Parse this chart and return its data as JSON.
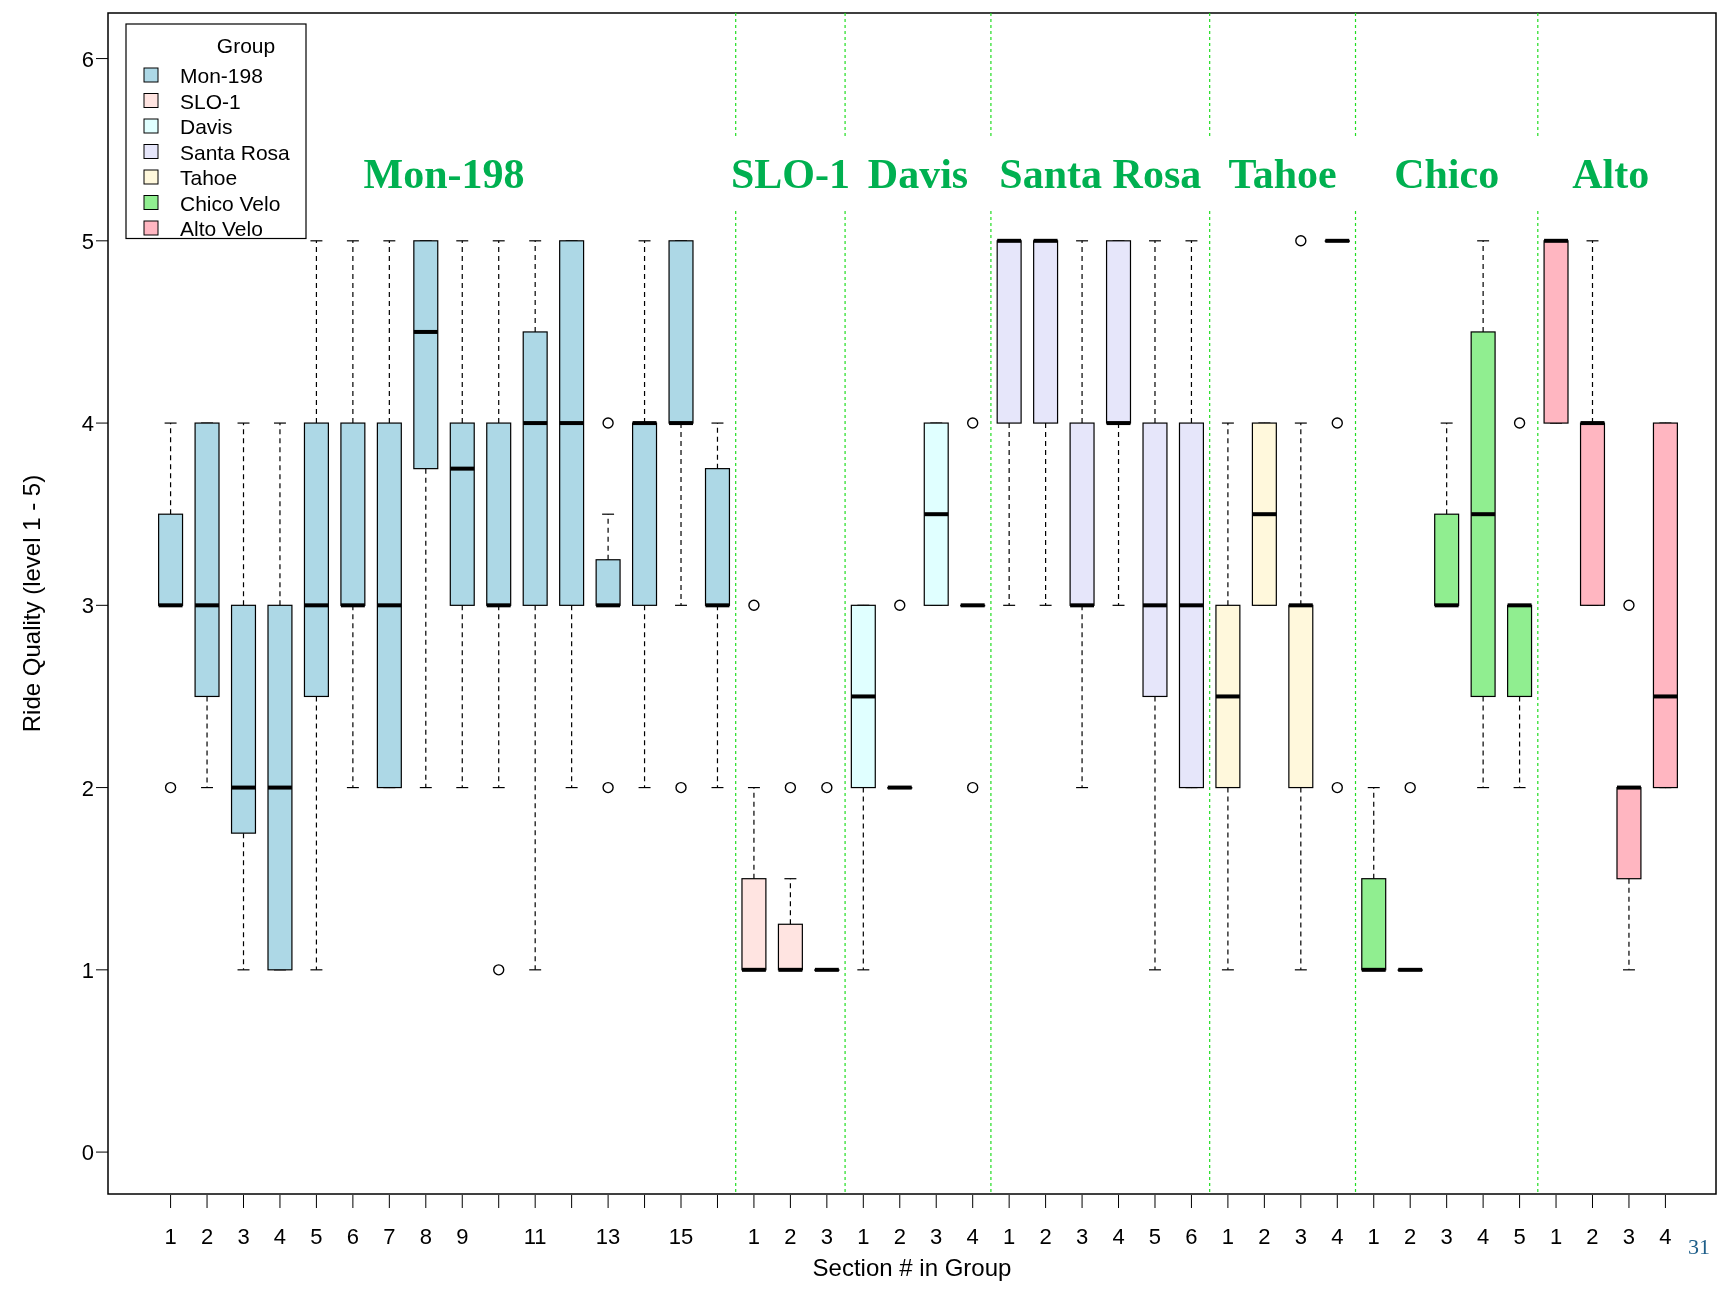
{
  "chart_data": {
    "type": "box",
    "xlabel": "Section # in Group",
    "ylabel": "Ride Quality (level 1 - 5)",
    "legend_title": "Group",
    "legend": "top left",
    "ylim": [
      -0.23,
      6.25
    ],
    "yticks": [
      0,
      1,
      2,
      3,
      4,
      5,
      6
    ],
    "categories": [
      "1",
      "2",
      "3",
      "4",
      "5",
      "6",
      "7",
      "8",
      "9",
      null,
      "11",
      null,
      "13",
      null,
      "15",
      null,
      "1",
      "2",
      "3",
      "1",
      "2",
      "3",
      "4",
      "1",
      "2",
      "3",
      "4",
      "5",
      "6",
      "1",
      "2",
      "3",
      "4",
      "1",
      "2",
      "3",
      "4",
      "5",
      "1",
      "2",
      "3",
      "4"
    ],
    "annotations": [
      "Mon-198",
      "SLO-1",
      "Davis",
      "Santa Rosa",
      "Tahoe",
      "Chico",
      "Alto",
      "31"
    ],
    "series": [
      {
        "name": "Mon-198",
        "color": "#add8e6",
        "boxes": [
          {
            "low": 3,
            "q1": 3,
            "median": 3,
            "q3": 3.5,
            "high": 4,
            "outliers": [
              2
            ]
          },
          {
            "low": 2,
            "q1": 2.5,
            "median": 3,
            "q3": 4,
            "high": 4
          },
          {
            "low": 1,
            "q1": 1.75,
            "median": 2,
            "q3": 3,
            "high": 4
          },
          {
            "low": 1,
            "q1": 1,
            "median": 2,
            "q3": 3,
            "high": 4
          },
          {
            "low": 1,
            "q1": 2.5,
            "median": 3,
            "q3": 4,
            "high": 5
          },
          {
            "low": 2,
            "q1": 3,
            "median": 3,
            "q3": 4,
            "high": 5
          },
          {
            "low": 2,
            "q1": 2,
            "median": 3,
            "q3": 4,
            "high": 5
          },
          {
            "low": 2,
            "q1": 3.75,
            "median": 4.5,
            "q3": 5,
            "high": 5
          },
          {
            "low": 2,
            "q1": 3,
            "median": 3.75,
            "q3": 4,
            "high": 5
          },
          {
            "low": 2,
            "q1": 3,
            "median": 3,
            "q3": 4,
            "high": 5,
            "outliers": [
              1
            ]
          },
          {
            "low": 1,
            "q1": 3,
            "median": 4,
            "q3": 4.5,
            "high": 5
          },
          {
            "low": 2,
            "q1": 3,
            "median": 4,
            "q3": 5,
            "high": 5
          },
          {
            "low": 3,
            "q1": 3,
            "median": 3,
            "q3": 3.25,
            "high": 3.5,
            "outliers": [
              4,
              2
            ]
          },
          {
            "low": 2,
            "q1": 3,
            "median": 4,
            "q3": 4,
            "high": 5
          },
          {
            "low": 3,
            "q1": 4,
            "median": 4,
            "q3": 5,
            "high": 5,
            "outliers": [
              2
            ]
          },
          {
            "low": 2,
            "q1": 3,
            "median": 3,
            "q3": 3.75,
            "high": 4
          },
          null,
          null,
          null,
          null,
          null,
          null,
          null,
          null,
          null,
          null,
          null,
          null,
          null,
          null,
          null,
          null,
          null,
          null,
          null,
          null,
          null,
          null,
          null,
          null,
          null,
          null
        ]
      },
      {
        "name": "SLO-1",
        "color": "#ffe4e1",
        "boxes": [
          null,
          null,
          null,
          null,
          null,
          null,
          null,
          null,
          null,
          null,
          null,
          null,
          null,
          null,
          null,
          null,
          {
            "low": 1,
            "q1": 1,
            "median": 1,
            "q3": 1.5,
            "high": 2,
            "outliers": [
              3
            ]
          },
          {
            "low": 1,
            "q1": 1,
            "median": 1,
            "q3": 1.25,
            "high": 1.5,
            "outliers": [
              2
            ]
          },
          {
            "low": 1,
            "q1": 1,
            "median": 1,
            "q3": 1,
            "high": 1,
            "outliers": [
              2
            ]
          },
          null,
          null,
          null,
          null,
          null,
          null,
          null,
          null,
          null,
          null,
          null,
          null,
          null,
          null,
          null,
          null,
          null,
          null,
          null,
          null,
          null,
          null,
          null
        ]
      },
      {
        "name": "Davis",
        "color": "#e0ffff",
        "boxes": [
          null,
          null,
          null,
          null,
          null,
          null,
          null,
          null,
          null,
          null,
          null,
          null,
          null,
          null,
          null,
          null,
          null,
          null,
          null,
          {
            "low": 1,
            "q1": 2,
            "median": 2.5,
            "q3": 3,
            "high": 3
          },
          {
            "low": 2,
            "q1": 2,
            "median": 2,
            "q3": 2,
            "high": 2,
            "outliers": [
              3
            ]
          },
          {
            "low": 3,
            "q1": 3,
            "median": 3.5,
            "q3": 4,
            "high": 4
          },
          {
            "low": 3,
            "q1": 3,
            "median": 3,
            "q3": 3,
            "high": 3,
            "outliers": [
              4,
              2
            ]
          },
          null,
          null,
          null,
          null,
          null,
          null,
          null,
          null,
          null,
          null,
          null,
          null,
          null,
          null,
          null,
          null,
          null,
          null,
          null
        ]
      },
      {
        "name": "Santa Rosa",
        "color": "#e6e6fa",
        "boxes": [
          null,
          null,
          null,
          null,
          null,
          null,
          null,
          null,
          null,
          null,
          null,
          null,
          null,
          null,
          null,
          null,
          null,
          null,
          null,
          null,
          null,
          null,
          null,
          {
            "low": 3,
            "q1": 4,
            "median": 5,
            "q3": 5,
            "high": 5
          },
          {
            "low": 3,
            "q1": 4,
            "median": 5,
            "q3": 5,
            "high": 5
          },
          {
            "low": 2,
            "q1": 3,
            "median": 3,
            "q3": 4,
            "high": 5
          },
          {
            "low": 3,
            "q1": 4,
            "median": 4,
            "q3": 5,
            "high": 5
          },
          {
            "low": 1,
            "q1": 2.5,
            "median": 3,
            "q3": 4,
            "high": 5
          },
          {
            "low": 2,
            "q1": 2,
            "median": 3,
            "q3": 4,
            "high": 5
          },
          null,
          null,
          null,
          null,
          null,
          null,
          null,
          null,
          null,
          null,
          null,
          null,
          null
        ]
      },
      {
        "name": "Tahoe",
        "color": "#fff8dc",
        "boxes": [
          null,
          null,
          null,
          null,
          null,
          null,
          null,
          null,
          null,
          null,
          null,
          null,
          null,
          null,
          null,
          null,
          null,
          null,
          null,
          null,
          null,
          null,
          null,
          null,
          null,
          null,
          null,
          null,
          null,
          {
            "low": 1,
            "q1": 2,
            "median": 2.5,
            "q3": 3,
            "high": 4
          },
          {
            "low": 3,
            "q1": 3,
            "median": 3.5,
            "q3": 4,
            "high": 4
          },
          {
            "low": 1,
            "q1": 2,
            "median": 3,
            "q3": 3,
            "high": 4,
            "outliers": [
              5
            ]
          },
          {
            "low": 5,
            "q1": 5,
            "median": 5,
            "q3": 5,
            "high": 5,
            "outliers": [
              4,
              2
            ]
          },
          null,
          null,
          null,
          null,
          null,
          null,
          null,
          null,
          null
        ]
      },
      {
        "name": "Chico Velo",
        "color": "#90ee90",
        "boxes": [
          null,
          null,
          null,
          null,
          null,
          null,
          null,
          null,
          null,
          null,
          null,
          null,
          null,
          null,
          null,
          null,
          null,
          null,
          null,
          null,
          null,
          null,
          null,
          null,
          null,
          null,
          null,
          null,
          null,
          null,
          null,
          null,
          null,
          {
            "low": 1,
            "q1": 1,
            "median": 1,
            "q3": 1.5,
            "high": 2
          },
          {
            "low": 1,
            "q1": 1,
            "median": 1,
            "q3": 1,
            "high": 1,
            "outliers": [
              2
            ]
          },
          {
            "low": 3,
            "q1": 3,
            "median": 3,
            "q3": 3.5,
            "high": 4
          },
          {
            "low": 2,
            "q1": 2.5,
            "median": 3.5,
            "q3": 4.5,
            "high": 5
          },
          {
            "low": 2,
            "q1": 2.5,
            "median": 3,
            "q3": 3,
            "high": 3,
            "outliers": [
              4
            ]
          },
          null,
          null,
          null,
          null
        ]
      },
      {
        "name": "Alto Velo",
        "color": "#ffb6c1",
        "boxes": [
          null,
          null,
          null,
          null,
          null,
          null,
          null,
          null,
          null,
          null,
          null,
          null,
          null,
          null,
          null,
          null,
          null,
          null,
          null,
          null,
          null,
          null,
          null,
          null,
          null,
          null,
          null,
          null,
          null,
          null,
          null,
          null,
          null,
          null,
          null,
          null,
          null,
          null,
          {
            "low": 4,
            "q1": 4,
            "median": 5,
            "q3": 5,
            "high": 5
          },
          {
            "low": 3,
            "q1": 3,
            "median": 4,
            "q3": 4,
            "high": 5
          },
          {
            "low": 1,
            "q1": 1.5,
            "median": 2,
            "q3": 2,
            "high": 2,
            "outliers": [
              3
            ]
          },
          {
            "low": 2,
            "q1": 2,
            "median": 2.5,
            "q3": 4,
            "high": 4
          }
        ]
      }
    ]
  }
}
